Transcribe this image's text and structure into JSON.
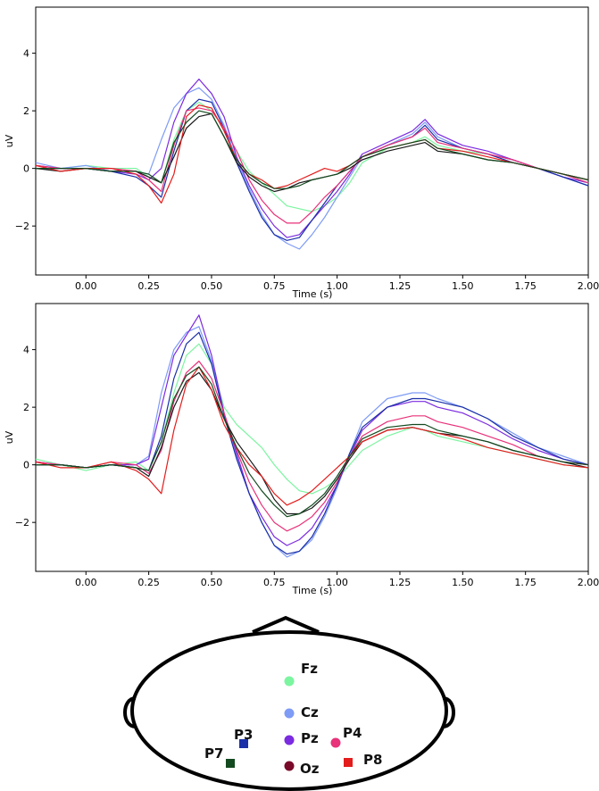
{
  "chart_data": [
    {
      "type": "line",
      "title": "",
      "xlabel": "Time (s)",
      "ylabel": "uV",
      "xlim": [
        -0.2,
        2.0
      ],
      "ylim": [
        -3.7,
        5.6
      ],
      "xticks": [
        "0.00",
        "0.25",
        "0.50",
        "0.75",
        "1.00",
        "1.25",
        "1.50",
        "1.75",
        "2.00"
      ],
      "yticks": [
        "−2",
        "0",
        "2",
        "4"
      ],
      "grid": false,
      "x": [
        -0.2,
        -0.1,
        0.0,
        0.1,
        0.2,
        0.25,
        0.3,
        0.35,
        0.4,
        0.45,
        0.5,
        0.55,
        0.6,
        0.65,
        0.7,
        0.75,
        0.8,
        0.85,
        0.9,
        0.95,
        1.0,
        1.05,
        1.1,
        1.2,
        1.3,
        1.35,
        1.4,
        1.5,
        1.6,
        1.7,
        1.8,
        1.9,
        2.0
      ],
      "series": [
        {
          "color": "#7CF5A0",
          "values": [
            0.1,
            0.0,
            0.1,
            0.0,
            0.0,
            -0.3,
            -0.5,
            1.0,
            2.0,
            2.3,
            2.0,
            1.4,
            0.6,
            -0.1,
            -0.5,
            -0.9,
            -1.3,
            -1.4,
            -1.5,
            -1.3,
            -1.0,
            -0.5,
            0.2,
            0.7,
            0.9,
            1.1,
            0.8,
            0.6,
            0.5,
            0.3,
            0.0,
            -0.2,
            -0.5
          ]
        },
        {
          "color": "#7E9BF5",
          "values": [
            0.2,
            0.0,
            0.1,
            -0.1,
            -0.1,
            -0.2,
            1.0,
            2.1,
            2.6,
            2.8,
            2.4,
            1.5,
            0.3,
            -0.7,
            -1.6,
            -2.3,
            -2.6,
            -2.8,
            -2.3,
            -1.7,
            -1.0,
            -0.3,
            0.4,
            0.8,
            1.2,
            1.6,
            1.1,
            0.7,
            0.5,
            0.3,
            0.0,
            -0.3,
            -0.6
          ]
        },
        {
          "color": "#7B2BE0",
          "values": [
            0.1,
            0.0,
            0.0,
            -0.1,
            -0.2,
            -0.4,
            0.0,
            1.6,
            2.6,
            3.1,
            2.6,
            1.8,
            0.4,
            -0.6,
            -1.4,
            -2.0,
            -2.4,
            -2.3,
            -1.8,
            -1.3,
            -0.8,
            -0.2,
            0.5,
            0.9,
            1.3,
            1.7,
            1.2,
            0.8,
            0.6,
            0.3,
            0.0,
            -0.3,
            -0.5
          ]
        },
        {
          "color": "#1A2FA8",
          "values": [
            0.0,
            0.0,
            0.0,
            -0.1,
            -0.3,
            -0.6,
            -1.0,
            0.6,
            2.0,
            2.4,
            2.3,
            1.4,
            0.2,
            -0.8,
            -1.7,
            -2.3,
            -2.5,
            -2.4,
            -1.8,
            -1.2,
            -0.6,
            -0.1,
            0.4,
            0.8,
            1.1,
            1.5,
            1.0,
            0.7,
            0.5,
            0.2,
            0.0,
            -0.3,
            -0.6
          ]
        },
        {
          "color": "#E8327A",
          "values": [
            0.1,
            0.0,
            0.0,
            0.0,
            -0.1,
            -0.4,
            -0.8,
            0.8,
            2.0,
            2.1,
            2.0,
            1.4,
            0.6,
            -0.4,
            -1.1,
            -1.6,
            -1.9,
            -1.9,
            -1.5,
            -1.0,
            -0.6,
            -0.1,
            0.4,
            0.8,
            1.1,
            1.4,
            0.9,
            0.7,
            0.5,
            0.3,
            0.0,
            -0.2,
            -0.5
          ]
        },
        {
          "color": "#1A1A1A",
          "values": [
            0.0,
            -0.1,
            0.0,
            -0.1,
            -0.1,
            -0.3,
            -0.5,
            0.4,
            1.4,
            1.8,
            1.9,
            1.1,
            0.2,
            -0.3,
            -0.6,
            -0.8,
            -0.7,
            -0.5,
            -0.4,
            -0.3,
            -0.2,
            0.0,
            0.3,
            0.6,
            0.8,
            0.9,
            0.6,
            0.5,
            0.3,
            0.2,
            0.0,
            -0.2,
            -0.4
          ]
        },
        {
          "color": "#E31C1C",
          "values": [
            0.1,
            -0.1,
            0.0,
            0.0,
            -0.2,
            -0.6,
            -1.2,
            -0.2,
            1.8,
            2.2,
            2.1,
            1.3,
            0.3,
            -0.2,
            -0.4,
            -0.7,
            -0.6,
            -0.4,
            -0.2,
            0.0,
            -0.1,
            0.1,
            0.4,
            0.7,
            0.9,
            1.0,
            0.7,
            0.6,
            0.4,
            0.2,
            0.0,
            -0.2,
            -0.4
          ]
        },
        {
          "color": "#134A1F",
          "values": [
            0.0,
            0.0,
            0.0,
            -0.1,
            -0.1,
            -0.2,
            -0.5,
            0.9,
            1.6,
            2.0,
            1.9,
            1.1,
            0.3,
            -0.2,
            -0.5,
            -0.7,
            -0.7,
            -0.6,
            -0.4,
            -0.3,
            -0.2,
            0.1,
            0.4,
            0.7,
            0.9,
            1.0,
            0.7,
            0.5,
            0.3,
            0.2,
            0.0,
            -0.2,
            -0.4
          ]
        }
      ]
    },
    {
      "type": "line",
      "title": "",
      "xlabel": "Time (s)",
      "ylabel": "uV",
      "xlim": [
        -0.2,
        2.0
      ],
      "ylim": [
        -3.7,
        5.6
      ],
      "xticks": [
        "0.00",
        "0.25",
        "0.50",
        "0.75",
        "1.00",
        "1.25",
        "1.50",
        "1.75",
        "2.00"
      ],
      "yticks": [
        "−2",
        "0",
        "2",
        "4"
      ],
      "grid": false,
      "x": [
        -0.2,
        -0.1,
        0.0,
        0.1,
        0.2,
        0.25,
        0.3,
        0.35,
        0.4,
        0.45,
        0.5,
        0.55,
        0.6,
        0.65,
        0.7,
        0.75,
        0.8,
        0.85,
        0.9,
        0.95,
        1.0,
        1.05,
        1.1,
        1.2,
        1.3,
        1.35,
        1.4,
        1.5,
        1.6,
        1.7,
        1.8,
        1.9,
        2.0
      ],
      "series": [
        {
          "color": "#7CF5A0",
          "values": [
            0.2,
            0.0,
            -0.2,
            0.0,
            0.1,
            -0.2,
            0.8,
            2.5,
            3.8,
            4.2,
            3.5,
            2.0,
            1.4,
            1.0,
            0.6,
            0.0,
            -0.5,
            -0.9,
            -1.0,
            -0.8,
            -0.5,
            0.0,
            0.5,
            1.0,
            1.3,
            1.2,
            1.0,
            0.8,
            0.6,
            0.4,
            0.2,
            0.0,
            -0.1
          ]
        },
        {
          "color": "#7E9BF5",
          "values": [
            0.1,
            0.0,
            -0.1,
            0.0,
            0.0,
            0.3,
            2.5,
            4.0,
            4.6,
            4.8,
            3.6,
            1.8,
            0.3,
            -1.0,
            -2.0,
            -2.8,
            -3.2,
            -3.0,
            -2.6,
            -1.8,
            -0.8,
            0.4,
            1.5,
            2.3,
            2.5,
            2.5,
            2.3,
            2.0,
            1.6,
            1.1,
            0.6,
            0.3,
            0.0
          ]
        },
        {
          "color": "#7B2BE0",
          "values": [
            0.1,
            0.0,
            -0.1,
            0.0,
            0.0,
            0.2,
            2.0,
            3.8,
            4.5,
            5.2,
            3.8,
            1.8,
            0.4,
            -1.0,
            -1.8,
            -2.5,
            -2.8,
            -2.6,
            -2.2,
            -1.5,
            -0.7,
            0.3,
            1.2,
            2.0,
            2.2,
            2.2,
            2.0,
            1.8,
            1.4,
            0.9,
            0.5,
            0.2,
            0.0
          ]
        },
        {
          "color": "#1A2FA8",
          "values": [
            0.0,
            0.0,
            -0.1,
            0.0,
            -0.1,
            -0.2,
            1.0,
            3.0,
            4.2,
            4.6,
            3.5,
            1.7,
            0.2,
            -1.0,
            -2.0,
            -2.8,
            -3.1,
            -3.0,
            -2.5,
            -1.7,
            -0.7,
            0.4,
            1.3,
            2.0,
            2.3,
            2.3,
            2.2,
            2.0,
            1.6,
            1.0,
            0.6,
            0.2,
            0.0
          ]
        },
        {
          "color": "#E8327A",
          "values": [
            0.1,
            0.0,
            -0.1,
            0.1,
            0.0,
            -0.3,
            0.5,
            2.2,
            3.2,
            3.6,
            3.0,
            1.8,
            0.5,
            -0.6,
            -1.4,
            -2.0,
            -2.3,
            -2.1,
            -1.8,
            -1.3,
            -0.6,
            0.3,
            1.0,
            1.5,
            1.7,
            1.7,
            1.5,
            1.3,
            1.0,
            0.7,
            0.3,
            0.1,
            0.0
          ]
        },
        {
          "color": "#1A1A1A",
          "values": [
            0.0,
            0.0,
            -0.1,
            0.0,
            -0.1,
            -0.4,
            0.6,
            2.0,
            2.9,
            3.2,
            2.6,
            1.6,
            0.8,
            0.2,
            -0.4,
            -1.2,
            -1.7,
            -1.7,
            -1.5,
            -1.1,
            -0.5,
            0.2,
            0.8,
            1.2,
            1.3,
            1.2,
            1.1,
            1.0,
            0.8,
            0.5,
            0.3,
            0.1,
            -0.1
          ]
        },
        {
          "color": "#E31C1C",
          "values": [
            0.1,
            -0.1,
            -0.1,
            0.1,
            -0.2,
            -0.5,
            -1.0,
            1.2,
            2.8,
            3.4,
            2.6,
            1.4,
            0.6,
            0.0,
            -0.4,
            -1.0,
            -1.4,
            -1.2,
            -0.9,
            -0.5,
            -0.1,
            0.3,
            0.8,
            1.2,
            1.3,
            1.2,
            1.1,
            0.9,
            0.6,
            0.4,
            0.2,
            0.0,
            -0.1
          ]
        },
        {
          "color": "#134A1F",
          "values": [
            0.0,
            0.0,
            -0.1,
            0.0,
            -0.1,
            -0.2,
            0.8,
            2.3,
            3.1,
            3.4,
            2.8,
            1.6,
            0.6,
            -0.3,
            -0.9,
            -1.4,
            -1.8,
            -1.7,
            -1.4,
            -1.0,
            -0.4,
            0.3,
            0.9,
            1.3,
            1.4,
            1.4,
            1.2,
            1.0,
            0.8,
            0.5,
            0.3,
            0.1,
            0.0
          ]
        }
      ]
    }
  ],
  "sensor_map": {
    "electrodes": [
      {
        "label": "Fz",
        "color": "#7CF5A0"
      },
      {
        "label": "Cz",
        "color": "#7E9BF5"
      },
      {
        "label": "Pz",
        "color": "#7B2BE0"
      },
      {
        "label": "P3",
        "color": "#1A2FA8"
      },
      {
        "label": "P4",
        "color": "#E8327A"
      },
      {
        "label": "P7",
        "color": "#134A1F"
      },
      {
        "label": "P8",
        "color": "#E31C1C"
      },
      {
        "label": "Oz",
        "color": "#7A0A2A"
      }
    ]
  }
}
